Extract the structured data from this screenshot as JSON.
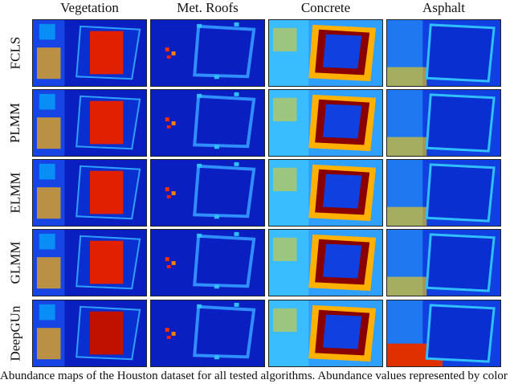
{
  "columns": [
    "Vegetation",
    "Met. Roofs",
    "Concrete",
    "Asphalt"
  ],
  "rows": [
    "FCLS",
    "PLMM",
    "ELMM",
    "GLMM",
    "DeepGUn"
  ],
  "caption": "Abundance maps of the Houston dataset for all tested algorithms. Abundance values represented by color",
  "colormap": {
    "low": "#00008f",
    "mid": "#00ffff",
    "high": "#7f0000"
  }
}
